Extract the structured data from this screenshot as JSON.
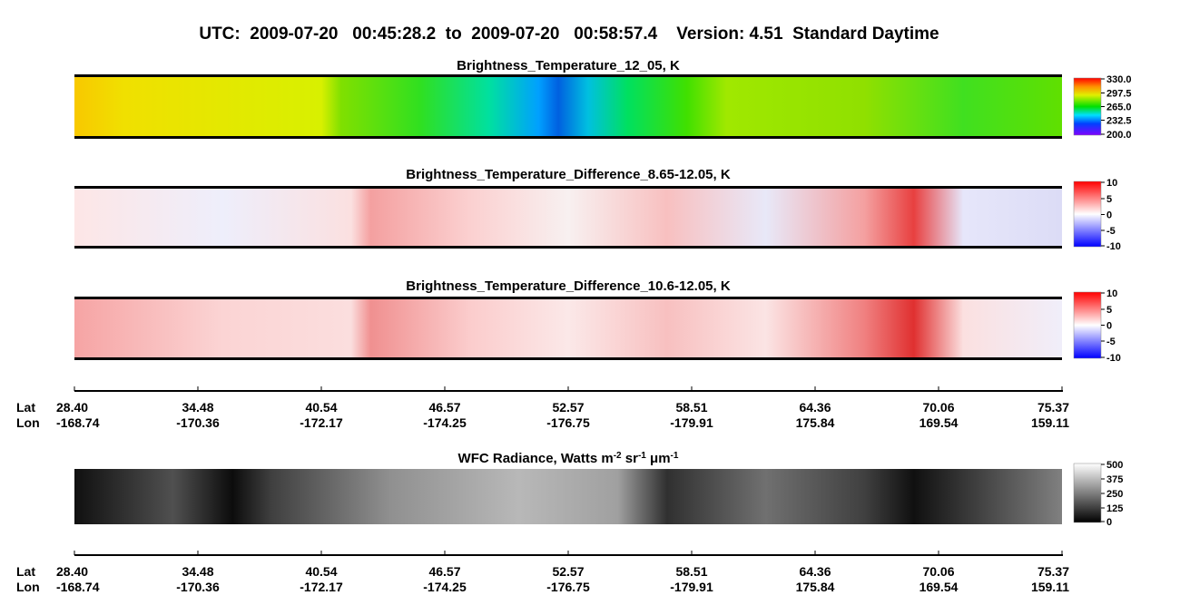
{
  "header": {
    "title": "UTC:  2009-07-20   00:45:28.2  to  2009-07-20   00:58:57.4    Version: 4.51  Standard Daytime"
  },
  "panels": [
    {
      "title": [
        "Brightness_Temperature_12_05, K"
      ],
      "colorbar_ticks": [
        "330.0",
        "297.5",
        "265.0",
        "232.5",
        "200.0"
      ]
    },
    {
      "title": [
        "Brightness_Temperature_Difference_8.65-12.05, K"
      ],
      "colorbar_ticks": [
        "10",
        "5",
        "0",
        "-5",
        "-10"
      ]
    },
    {
      "title": [
        "Brightness_Temperature_Difference_10.6-12.05, K"
      ],
      "colorbar_ticks": [
        "10",
        "5",
        "0",
        "-5",
        "-10"
      ]
    },
    {
      "title": [
        "WFC Radiance, Watts m",
        "-2",
        " sr",
        "-1",
        " μm",
        "-1"
      ],
      "colorbar_ticks": [
        "500",
        "375",
        "250",
        "125",
        "0"
      ]
    }
  ],
  "axes": [
    {
      "lat_label": "Lat",
      "lon_label": "Lon",
      "lat": [
        "28.40",
        "34.48",
        "40.54",
        "46.57",
        "52.57",
        "58.51",
        "64.36",
        "70.06",
        "75.37"
      ],
      "lon": [
        "-168.74",
        "-170.36",
        "-172.17",
        "-174.25",
        "-176.75",
        "-179.91",
        "175.84",
        "169.54",
        "159.11"
      ]
    },
    {
      "lat_label": "Lat",
      "lon_label": "Lon",
      "lat": [
        "28.40",
        "34.48",
        "40.54",
        "46.57",
        "52.57",
        "58.51",
        "64.36",
        "70.06",
        "75.37"
      ],
      "lon": [
        "-168.74",
        "-170.36",
        "-172.17",
        "-174.25",
        "-176.75",
        "-179.91",
        "175.84",
        "169.54",
        "159.11"
      ]
    }
  ]
}
